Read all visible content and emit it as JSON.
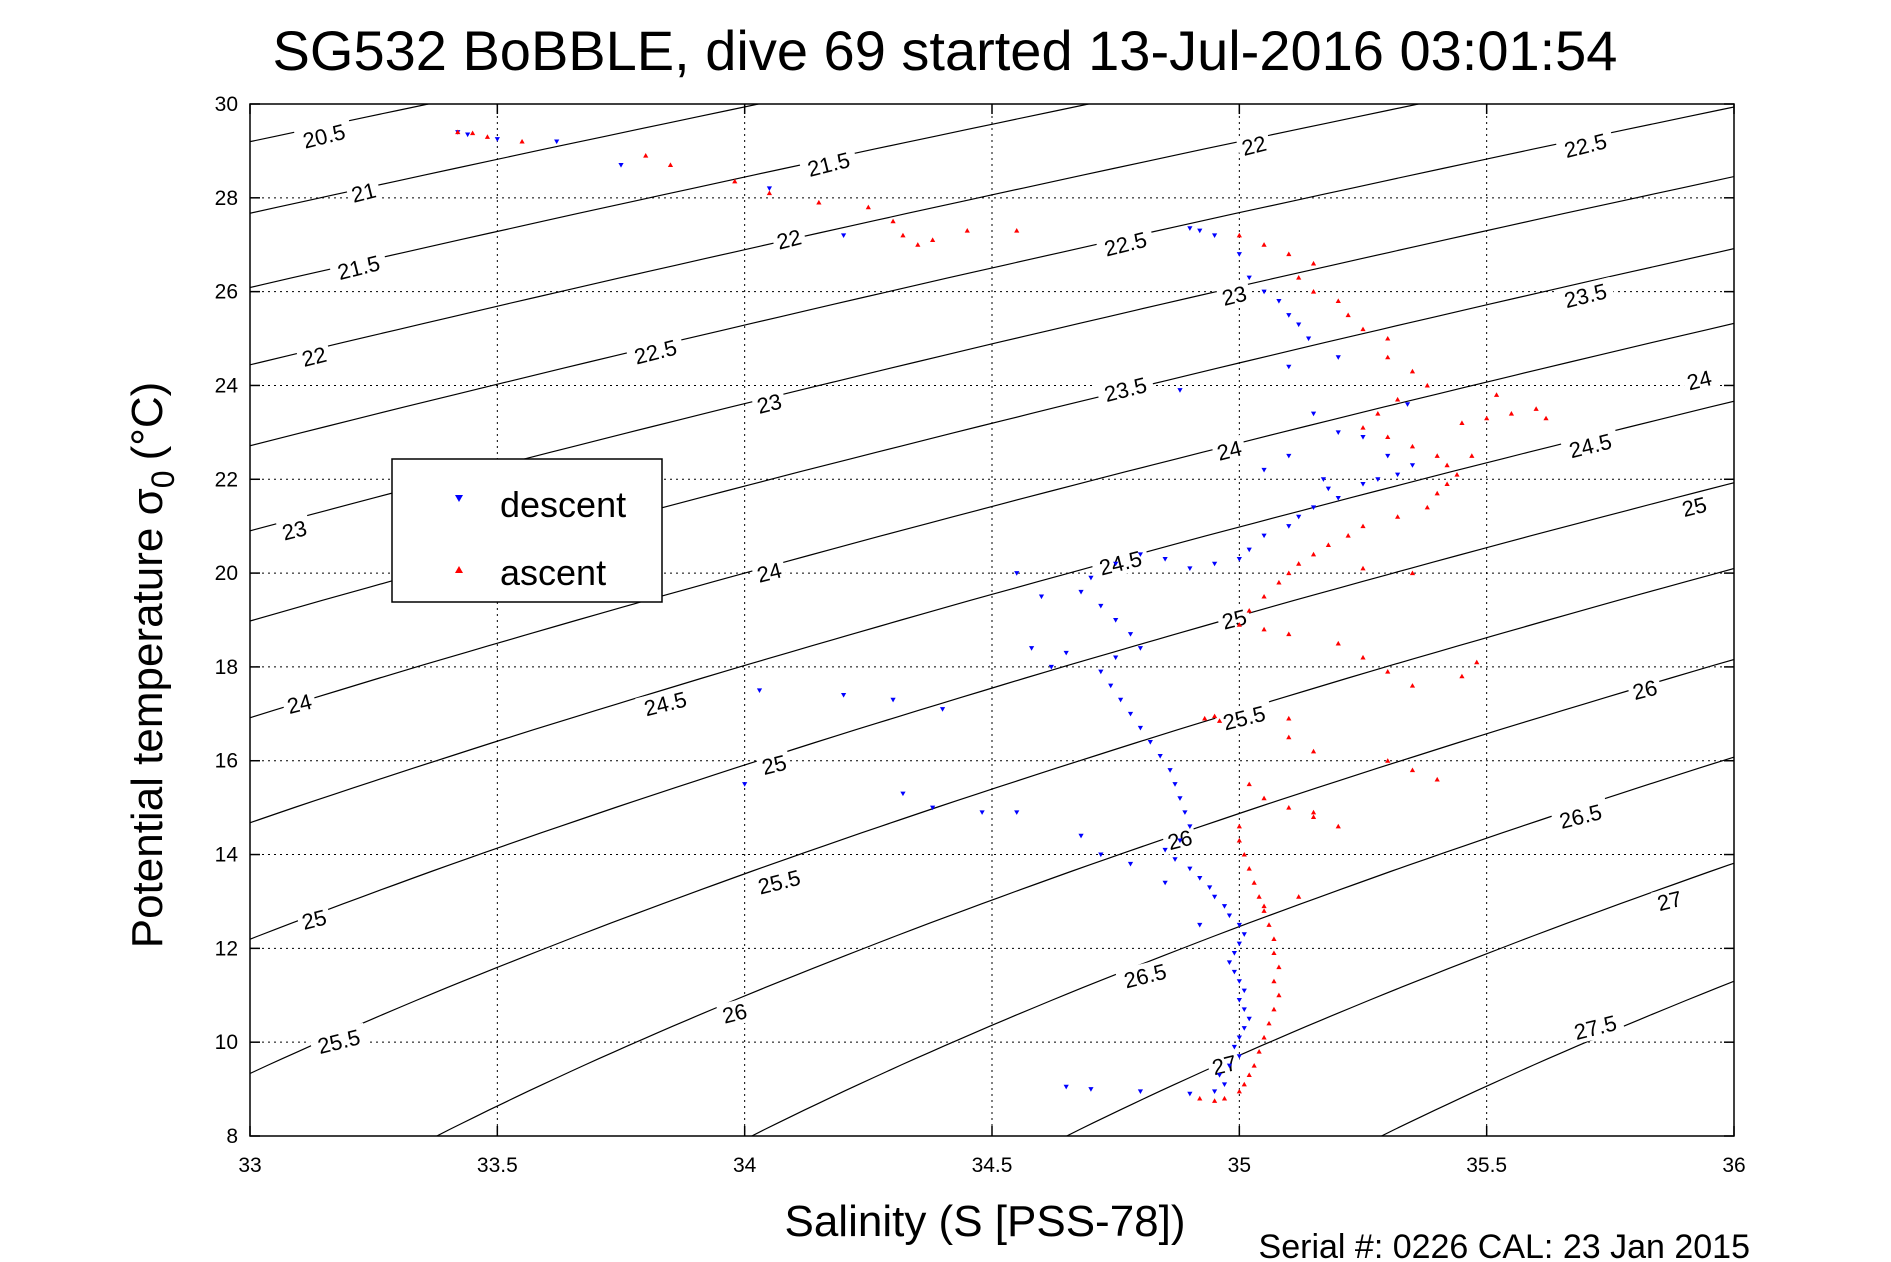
{
  "chart_data": {
    "type": "scatter",
    "title": "SG532 BoBBLE, dive 69 started 13-Jul-2016 03:01:54",
    "xlabel": "Salinity (S [PSS-78])",
    "ylabel_main": "Potential temperature σ",
    "ylabel_sub": "0",
    "ylabel_unit": "(°C)",
    "footer": "Serial #: 0226  CAL: 23 Jan 2015",
    "xlim": [
      33,
      36
    ],
    "ylim": [
      8,
      30
    ],
    "x_ticks": [
      "33",
      "33.5",
      "34",
      "34.5",
      "35",
      "35.5",
      "36"
    ],
    "y_ticks": [
      "8",
      "10",
      "12",
      "14",
      "16",
      "18",
      "20",
      "22",
      "24",
      "26",
      "28",
      "30"
    ],
    "grid": true,
    "legend_position": "center-left",
    "legend": [
      {
        "name": "descent",
        "color": "#0000ff",
        "marker": "triangle-down"
      },
      {
        "name": "ascent",
        "color": "#ff0000",
        "marker": "triangle-up"
      }
    ],
    "contour_lines": {
      "sigma0_levels": [
        20.5,
        21,
        21.5,
        22,
        22.5,
        23,
        23.5,
        24,
        24.5,
        25,
        25.5,
        26,
        26.5,
        27,
        27.5
      ],
      "labels": [
        {
          "text": "20.5",
          "s": 33.15,
          "t": 29.3
        },
        {
          "text": "21",
          "s": 33.23,
          "t": 28.1
        },
        {
          "text": "21.5",
          "s": 33.22,
          "t": 26.5
        },
        {
          "text": "22",
          "s": 33.13,
          "t": 24.6
        },
        {
          "text": "23",
          "s": 33.09,
          "t": 20.9
        },
        {
          "text": "24",
          "s": 33.1,
          "t": 17.2
        },
        {
          "text": "25",
          "s": 33.13,
          "t": 12.6
        },
        {
          "text": "25.5",
          "s": 33.18,
          "t": 10.0
        },
        {
          "text": "21.5",
          "s": 34.17,
          "t": 28.7
        },
        {
          "text": "22",
          "s": 34.09,
          "t": 27.1
        },
        {
          "text": "22.5",
          "s": 33.82,
          "t": 24.7
        },
        {
          "text": "23",
          "s": 34.05,
          "t": 23.6
        },
        {
          "text": "24",
          "s": 34.05,
          "t": 20.0
        },
        {
          "text": "24.5",
          "s": 33.84,
          "t": 17.2
        },
        {
          "text": "25",
          "s": 34.06,
          "t": 15.9
        },
        {
          "text": "25.5",
          "s": 34.07,
          "t": 13.4
        },
        {
          "text": "26",
          "s": 33.98,
          "t": 10.6
        },
        {
          "text": "22",
          "s": 35.03,
          "t": 29.1
        },
        {
          "text": "22.5",
          "s": 34.77,
          "t": 27.0
        },
        {
          "text": "23",
          "s": 34.99,
          "t": 25.9
        },
        {
          "text": "23.5",
          "s": 34.77,
          "t": 23.9
        },
        {
          "text": "24",
          "s": 34.98,
          "t": 22.6
        },
        {
          "text": "24.5",
          "s": 34.76,
          "t": 20.2
        },
        {
          "text": "25",
          "s": 34.99,
          "t": 19.0
        },
        {
          "text": "25.5",
          "s": 35.01,
          "t": 16.9
        },
        {
          "text": "26",
          "s": 34.88,
          "t": 14.3
        },
        {
          "text": "26.5",
          "s": 34.81,
          "t": 11.4
        },
        {
          "text": "27",
          "s": 34.97,
          "t": 9.5
        },
        {
          "text": "22.5",
          "s": 35.7,
          "t": 29.1
        },
        {
          "text": "23.5",
          "s": 35.7,
          "t": 25.9
        },
        {
          "text": "24",
          "s": 35.93,
          "t": 24.1
        },
        {
          "text": "24.5",
          "s": 35.71,
          "t": 22.7
        },
        {
          "text": "25",
          "s": 35.92,
          "t": 21.4
        },
        {
          "text": "26",
          "s": 35.82,
          "t": 17.5
        },
        {
          "text": "26.5",
          "s": 35.69,
          "t": 14.8
        },
        {
          "text": "27",
          "s": 35.87,
          "t": 13.0
        },
        {
          "text": "27.5",
          "s": 35.72,
          "t": 10.3
        }
      ]
    },
    "series": [
      {
        "name": "descent",
        "color": "#0000ff",
        "marker": "triangle-down",
        "points": [
          [
            33.42,
            29.4
          ],
          [
            33.44,
            29.35
          ],
          [
            33.5,
            29.25
          ],
          [
            33.62,
            29.2
          ],
          [
            33.75,
            28.7
          ],
          [
            34.05,
            28.2
          ],
          [
            34.2,
            27.2
          ],
          [
            34.9,
            27.35
          ],
          [
            34.92,
            27.3
          ],
          [
            34.95,
            27.2
          ],
          [
            35.0,
            26.8
          ],
          [
            35.02,
            26.3
          ],
          [
            35.05,
            26.0
          ],
          [
            35.08,
            25.8
          ],
          [
            35.1,
            25.5
          ],
          [
            35.12,
            25.3
          ],
          [
            35.14,
            25.0
          ],
          [
            35.2,
            24.6
          ],
          [
            35.1,
            24.4
          ],
          [
            34.88,
            23.9
          ],
          [
            35.15,
            23.4
          ],
          [
            35.2,
            23.0
          ],
          [
            35.25,
            22.9
          ],
          [
            35.3,
            22.5
          ],
          [
            35.35,
            22.3
          ],
          [
            35.32,
            22.1
          ],
          [
            35.25,
            21.9
          ],
          [
            35.2,
            21.6
          ],
          [
            35.15,
            21.4
          ],
          [
            35.12,
            21.2
          ],
          [
            35.1,
            21.0
          ],
          [
            35.05,
            20.8
          ],
          [
            35.02,
            20.5
          ],
          [
            35.0,
            20.3
          ],
          [
            34.95,
            20.2
          ],
          [
            34.9,
            20.1
          ],
          [
            34.85,
            20.3
          ],
          [
            34.8,
            20.4
          ],
          [
            34.75,
            20.2
          ],
          [
            34.7,
            19.9
          ],
          [
            34.68,
            19.6
          ],
          [
            34.72,
            19.3
          ],
          [
            34.75,
            19.0
          ],
          [
            34.78,
            18.7
          ],
          [
            34.8,
            18.4
          ],
          [
            34.75,
            18.2
          ],
          [
            34.72,
            17.9
          ],
          [
            34.74,
            17.6
          ],
          [
            34.76,
            17.3
          ],
          [
            34.78,
            17.0
          ],
          [
            34.8,
            16.7
          ],
          [
            34.82,
            16.4
          ],
          [
            34.84,
            16.1
          ],
          [
            34.86,
            15.8
          ],
          [
            34.87,
            15.5
          ],
          [
            34.88,
            15.2
          ],
          [
            34.89,
            14.9
          ],
          [
            34.9,
            14.6
          ],
          [
            34.88,
            14.3
          ],
          [
            34.85,
            14.1
          ],
          [
            34.87,
            13.9
          ],
          [
            34.9,
            13.7
          ],
          [
            34.92,
            13.5
          ],
          [
            34.94,
            13.3
          ],
          [
            34.95,
            13.1
          ],
          [
            34.97,
            12.9
          ],
          [
            34.98,
            12.7
          ],
          [
            35.0,
            12.5
          ],
          [
            35.01,
            12.3
          ],
          [
            35.0,
            12.1
          ],
          [
            34.99,
            11.9
          ],
          [
            34.98,
            11.7
          ],
          [
            34.99,
            11.5
          ],
          [
            35.0,
            11.3
          ],
          [
            35.01,
            11.1
          ],
          [
            35.0,
            10.9
          ],
          [
            35.01,
            10.7
          ],
          [
            35.02,
            10.5
          ],
          [
            35.01,
            10.3
          ],
          [
            35.0,
            10.1
          ],
          [
            34.99,
            9.9
          ],
          [
            35.0,
            9.7
          ],
          [
            34.98,
            9.5
          ],
          [
            34.96,
            9.3
          ],
          [
            34.97,
            9.1
          ],
          [
            34.95,
            8.95
          ],
          [
            34.9,
            8.9
          ],
          [
            34.8,
            8.95
          ],
          [
            34.7,
            9.0
          ],
          [
            34.65,
            9.05
          ],
          [
            34.55,
            14.9
          ],
          [
            34.48,
            14.9
          ],
          [
            34.38,
            15.0
          ],
          [
            34.32,
            15.3
          ],
          [
            34.0,
            15.5
          ],
          [
            34.03,
            17.5
          ],
          [
            34.2,
            17.4
          ],
          [
            34.3,
            17.3
          ],
          [
            34.4,
            17.1
          ],
          [
            34.55,
            20.0
          ],
          [
            34.6,
            19.5
          ],
          [
            34.58,
            18.4
          ],
          [
            34.62,
            18.0
          ],
          [
            34.65,
            18.3
          ],
          [
            34.68,
            14.4
          ],
          [
            34.72,
            14.0
          ],
          [
            34.78,
            13.8
          ],
          [
            34.85,
            13.4
          ],
          [
            34.92,
            12.5
          ],
          [
            35.05,
            22.2
          ],
          [
            35.1,
            22.5
          ],
          [
            35.17,
            22.0
          ],
          [
            35.18,
            21.8
          ],
          [
            35.28,
            22.0
          ],
          [
            35.34,
            23.6
          ]
        ]
      },
      {
        "name": "ascent",
        "color": "#ff0000",
        "marker": "triangle-up",
        "points": [
          [
            33.42,
            29.4
          ],
          [
            33.45,
            29.38
          ],
          [
            33.48,
            29.3
          ],
          [
            33.55,
            29.2
          ],
          [
            33.8,
            28.9
          ],
          [
            33.85,
            28.7
          ],
          [
            33.98,
            28.35
          ],
          [
            34.05,
            28.1
          ],
          [
            34.15,
            27.9
          ],
          [
            34.25,
            27.8
          ],
          [
            34.3,
            27.5
          ],
          [
            34.32,
            27.2
          ],
          [
            34.35,
            27.0
          ],
          [
            34.38,
            27.1
          ],
          [
            34.45,
            27.3
          ],
          [
            34.55,
            27.3
          ],
          [
            35.0,
            27.2
          ],
          [
            35.05,
            27.0
          ],
          [
            35.1,
            26.8
          ],
          [
            35.15,
            26.6
          ],
          [
            35.12,
            26.3
          ],
          [
            35.15,
            26.0
          ],
          [
            35.2,
            25.8
          ],
          [
            35.22,
            25.5
          ],
          [
            35.25,
            25.2
          ],
          [
            35.3,
            25.0
          ],
          [
            35.3,
            24.6
          ],
          [
            35.35,
            24.3
          ],
          [
            35.38,
            24.0
          ],
          [
            35.32,
            23.7
          ],
          [
            35.28,
            23.4
          ],
          [
            35.25,
            23.1
          ],
          [
            35.3,
            22.9
          ],
          [
            35.35,
            22.7
          ],
          [
            35.4,
            22.5
          ],
          [
            35.42,
            22.3
          ],
          [
            35.44,
            22.1
          ],
          [
            35.42,
            21.9
          ],
          [
            35.4,
            21.7
          ],
          [
            35.38,
            21.4
          ],
          [
            35.32,
            21.2
          ],
          [
            35.25,
            21.0
          ],
          [
            35.22,
            20.8
          ],
          [
            35.18,
            20.6
          ],
          [
            35.15,
            20.4
          ],
          [
            35.12,
            20.2
          ],
          [
            35.1,
            20.0
          ],
          [
            35.08,
            19.8
          ],
          [
            35.05,
            19.5
          ],
          [
            35.02,
            19.2
          ],
          [
            35.0,
            18.9
          ],
          [
            35.05,
            18.8
          ],
          [
            35.1,
            18.7
          ],
          [
            35.2,
            18.5
          ],
          [
            35.25,
            18.2
          ],
          [
            35.3,
            17.9
          ],
          [
            35.35,
            17.6
          ],
          [
            35.45,
            17.8
          ],
          [
            35.48,
            18.1
          ],
          [
            34.95,
            16.95
          ],
          [
            34.93,
            16.9
          ],
          [
            34.96,
            16.85
          ],
          [
            35.1,
            16.5
          ],
          [
            35.15,
            16.2
          ],
          [
            35.3,
            16.0
          ],
          [
            35.35,
            15.8
          ],
          [
            35.4,
            15.6
          ],
          [
            35.02,
            15.5
          ],
          [
            35.05,
            15.2
          ],
          [
            35.1,
            15.0
          ],
          [
            35.15,
            14.9
          ],
          [
            35.2,
            14.6
          ],
          [
            35.0,
            14.6
          ],
          [
            35.0,
            14.3
          ],
          [
            35.01,
            14.0
          ],
          [
            35.02,
            13.7
          ],
          [
            35.03,
            13.4
          ],
          [
            35.04,
            13.1
          ],
          [
            35.05,
            12.8
          ],
          [
            35.06,
            12.5
          ],
          [
            35.07,
            12.2
          ],
          [
            35.07,
            11.9
          ],
          [
            35.08,
            11.6
          ],
          [
            35.07,
            11.3
          ],
          [
            35.08,
            11.0
          ],
          [
            35.07,
            10.7
          ],
          [
            35.06,
            10.4
          ],
          [
            35.05,
            10.1
          ],
          [
            35.04,
            9.8
          ],
          [
            35.03,
            9.5
          ],
          [
            35.02,
            9.3
          ],
          [
            35.01,
            9.1
          ],
          [
            35.0,
            8.95
          ],
          [
            34.97,
            8.8
          ],
          [
            34.95,
            8.75
          ],
          [
            34.92,
            8.8
          ],
          [
            35.5,
            23.3
          ],
          [
            35.55,
            23.4
          ],
          [
            35.6,
            23.5
          ],
          [
            35.62,
            23.3
          ],
          [
            35.52,
            23.8
          ],
          [
            35.45,
            23.2
          ],
          [
            35.47,
            22.5
          ],
          [
            35.35,
            20.0
          ],
          [
            35.25,
            20.1
          ],
          [
            35.1,
            16.9
          ],
          [
            35.15,
            14.8
          ],
          [
            35.05,
            12.9
          ],
          [
            35.12,
            13.1
          ]
        ]
      }
    ]
  }
}
